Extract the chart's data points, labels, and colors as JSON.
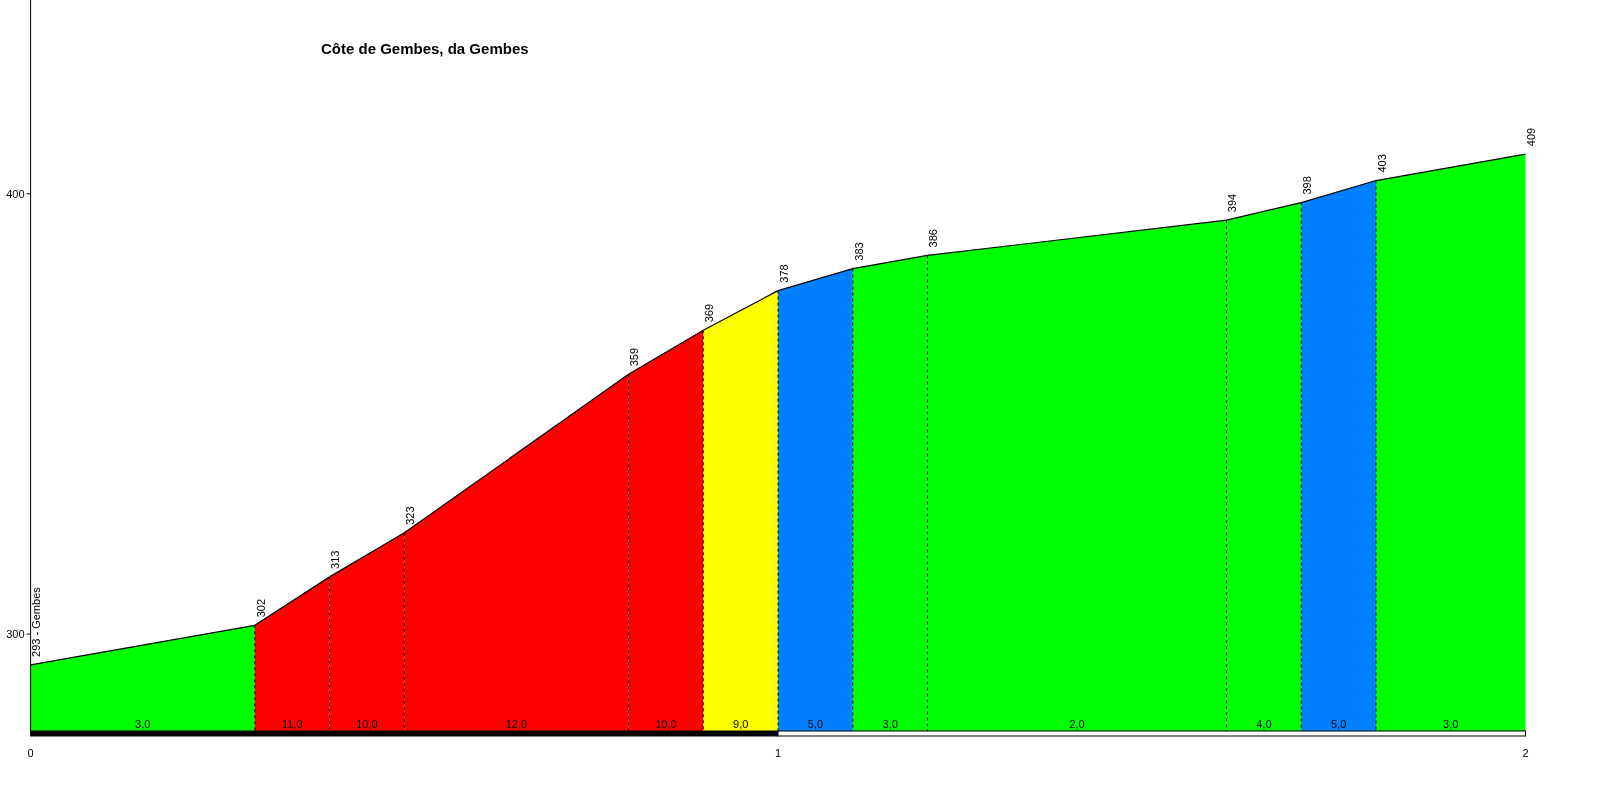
{
  "chart_data": {
    "type": "area",
    "title": "Côte de Gembes, da Gembes",
    "series": [
      {
        "color": "#00ff00",
        "x": [
          0,
          0.3
        ],
        "values": [
          293,
          302
        ],
        "value_labels": [
          "293 - Gembes",
          "302"
        ]
      },
      {
        "color": "#ff0000",
        "x": [
          0.3,
          0.4
        ],
        "values": [
          302,
          313
        ],
        "value_labels": [
          null,
          "313"
        ]
      },
      {
        "color": "#ff0000",
        "x": [
          0.4,
          0.5
        ],
        "values": [
          313,
          323
        ],
        "value_labels": [
          null,
          "323"
        ]
      },
      {
        "color": "#ff0000",
        "x": [
          0.5,
          0.8
        ],
        "values": [
          323,
          359
        ],
        "value_labels": [
          null,
          "359"
        ]
      },
      {
        "color": "#ff0000",
        "x": [
          0.8,
          0.9
        ],
        "values": [
          359,
          369
        ],
        "value_labels": [
          null,
          "369"
        ]
      },
      {
        "color": "#ffff00",
        "x": [
          0.9,
          1.0
        ],
        "values": [
          369,
          378
        ],
        "value_labels": [
          null,
          "378"
        ]
      },
      {
        "color": "#0080ff",
        "x": [
          1.0,
          1.1
        ],
        "values": [
          378,
          383
        ],
        "value_labels": [
          null,
          "383"
        ]
      },
      {
        "color": "#00ff00",
        "x": [
          1.1,
          1.2
        ],
        "values": [
          383,
          386
        ],
        "value_labels": [
          null,
          "386"
        ]
      },
      {
        "color": "#00ff00",
        "x": [
          1.2,
          1.6
        ],
        "values": [
          386,
          394
        ],
        "value_labels": [
          null,
          "394"
        ]
      },
      {
        "color": "#00ff00",
        "x": [
          1.6,
          1.7
        ],
        "values": [
          394,
          398
        ],
        "value_labels": [
          null,
          "398"
        ]
      },
      {
        "color": "#0080ff",
        "x": [
          1.7,
          1.8
        ],
        "values": [
          398,
          403
        ],
        "value_labels": [
          null,
          "403"
        ]
      },
      {
        "color": "#00ff00",
        "x": [
          1.8,
          2.0
        ],
        "values": [
          403,
          409
        ],
        "value_labels": [
          null,
          "409"
        ]
      }
    ],
    "annotations": [
      {
        "text": "3,0",
        "x": 0.15,
        "y": 278
      },
      {
        "text": "11,0",
        "x": 0.35,
        "y": 278
      },
      {
        "text": "10,0",
        "x": 0.45,
        "y": 278
      },
      {
        "text": "12,0",
        "x": 0.65,
        "y": 278
      },
      {
        "text": "10,0",
        "x": 0.85,
        "y": 278
      },
      {
        "text": "9,0",
        "x": 0.95,
        "y": 278
      },
      {
        "text": "5,0",
        "x": 1.05,
        "y": 278
      },
      {
        "text": "3,0",
        "x": 1.15,
        "y": 278
      },
      {
        "text": "2,0",
        "x": 1.4,
        "y": 278
      },
      {
        "text": "4,0",
        "x": 1.65,
        "y": 278
      },
      {
        "text": "5,0",
        "x": 1.75,
        "y": 278
      },
      {
        "text": "3,0",
        "x": 1.9,
        "y": 278
      }
    ],
    "xlim": [
      0,
      2
    ],
    "xticks": [
      0,
      1,
      2
    ],
    "ylim": [
      278,
      444
    ],
    "yticks": [
      300,
      400
    ],
    "grid": false
  }
}
